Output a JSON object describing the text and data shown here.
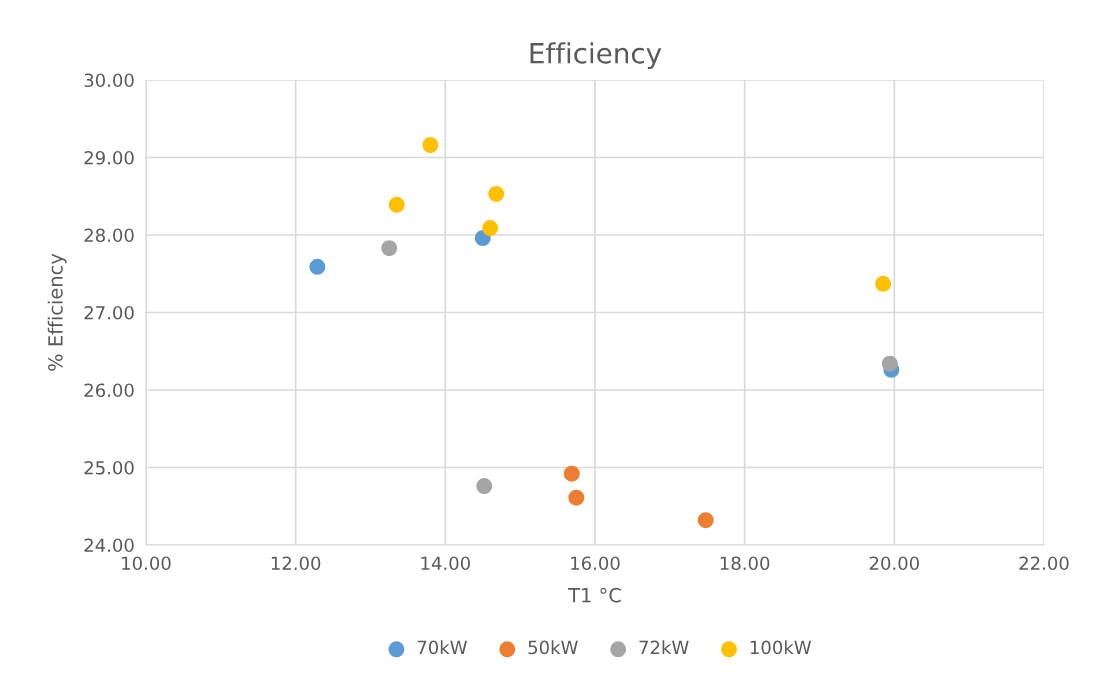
{
  "chart_data": {
    "type": "scatter",
    "title": "Efficiency",
    "xlabel": "T1 °C",
    "ylabel": "% Efficiency",
    "series": [
      {
        "name": "70kW",
        "color": "#5b9bd5",
        "x": [
          12.29,
          14.5,
          19.96
        ],
        "values": [
          27.59,
          27.96,
          26.26
        ]
      },
      {
        "name": "50kW",
        "color": "#ed7d31",
        "x": [
          15.69,
          15.75,
          17.48
        ],
        "values": [
          24.92,
          24.61,
          24.32
        ]
      },
      {
        "name": "72kW",
        "color": "#a5a5a5",
        "x": [
          13.25,
          14.52,
          19.94
        ],
        "values": [
          27.83,
          24.76,
          26.34
        ]
      },
      {
        "name": "100kW",
        "color": "#ffc000",
        "x": [
          13.8,
          13.35,
          14.68,
          14.6,
          19.85
        ],
        "values": [
          29.16,
          28.39,
          28.53,
          28.09,
          27.37
        ]
      }
    ],
    "xlim": [
      10,
      22
    ],
    "ylim": [
      24,
      30
    ],
    "xticks": [
      {
        "value": 10,
        "label": "10.00"
      },
      {
        "value": 12,
        "label": "12.00"
      },
      {
        "value": 14,
        "label": "14.00"
      },
      {
        "value": 16,
        "label": "16.00"
      },
      {
        "value": 18,
        "label": "18.00"
      },
      {
        "value": 20,
        "label": "20.00"
      },
      {
        "value": 22,
        "label": "22.00"
      }
    ],
    "yticks": [
      {
        "value": 24,
        "label": "24.00"
      },
      {
        "value": 25,
        "label": "25.00"
      },
      {
        "value": 26,
        "label": "26.00"
      },
      {
        "value": 27,
        "label": "27.00"
      },
      {
        "value": 28,
        "label": "28.00"
      },
      {
        "value": 29,
        "label": "29.00"
      },
      {
        "value": 30,
        "label": "30.00"
      }
    ],
    "grid": true,
    "legend": "bottom",
    "marker": "circle"
  }
}
